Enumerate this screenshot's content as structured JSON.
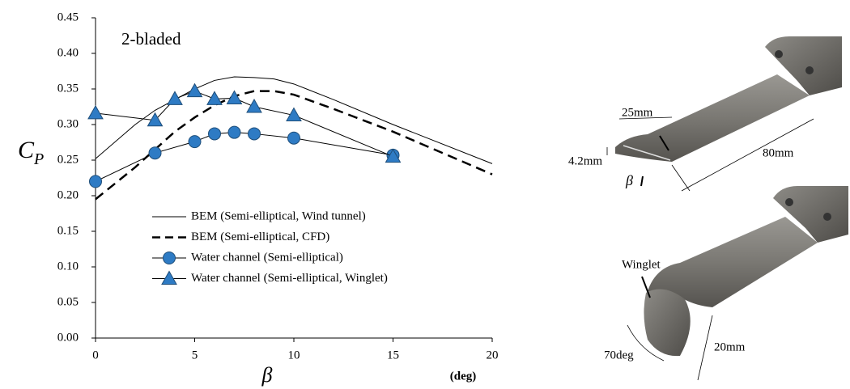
{
  "chart_data": {
    "type": "line",
    "annotation": "2-bladed",
    "y_label": {
      "text": "C",
      "subscript": "P"
    },
    "x_label": "β",
    "x_unit": "(deg)",
    "xlim": [
      0,
      20
    ],
    "xticks": [
      0,
      5,
      10,
      15,
      20
    ],
    "ylim": [
      0,
      0.45
    ],
    "yticks": [
      {
        "value": 0,
        "label": "0.00"
      },
      0.05,
      {
        "value": 0.1,
        "label": "0.10"
      },
      0.15,
      {
        "value": 0.2,
        "label": "0.20"
      },
      0.25,
      {
        "value": 0.3,
        "label": "0.30"
      },
      0.35,
      {
        "value": 0.4,
        "label": "0.40"
      },
      0.45
    ],
    "grid": false,
    "series": [
      {
        "name": "BEM (Semi-elliptical, Wind tunnel)",
        "color": "#000000",
        "dash": "solid",
        "marker": "none",
        "x": [
          0,
          2,
          3,
          4,
          5,
          6,
          7,
          8,
          9,
          10,
          12,
          15,
          20
        ],
        "values": [
          0.252,
          0.3,
          0.32,
          0.335,
          0.35,
          0.362,
          0.367,
          0.366,
          0.364,
          0.357,
          0.335,
          0.3,
          0.245
        ]
      },
      {
        "name": "BEM (Semi-elliptical, CFD)",
        "color": "#000000",
        "dash": "dashed",
        "marker": "none",
        "x": [
          0,
          2,
          3,
          4,
          5,
          6,
          7,
          8,
          9,
          10,
          12,
          15,
          20
        ],
        "values": [
          0.195,
          0.24,
          0.265,
          0.29,
          0.31,
          0.327,
          0.34,
          0.347,
          0.347,
          0.342,
          0.322,
          0.29,
          0.23
        ]
      },
      {
        "name": "Water channel (Semi-elliptical)",
        "color": "#2e7bc4",
        "dash": "solid",
        "marker": "circle",
        "x": [
          0,
          3,
          5,
          6,
          7,
          8,
          10,
          15
        ],
        "values": [
          0.22,
          0.26,
          0.276,
          0.287,
          0.289,
          0.287,
          0.281,
          0.257
        ]
      },
      {
        "name": "Water channel (Semi-elliptical, Winglet)",
        "color": "#2e7bc4",
        "dash": "solid",
        "marker": "triangle",
        "x": [
          0,
          3,
          4,
          5,
          6,
          7,
          8,
          10,
          15
        ],
        "values": [
          0.316,
          0.306,
          0.336,
          0.347,
          0.336,
          0.337,
          0.325,
          0.313,
          0.255
        ]
      }
    ]
  },
  "figure_annotations": {
    "width_top": "25mm",
    "thickness": "4.2mm",
    "length": "80mm",
    "pitch": "β",
    "winglet": "Winglet",
    "winglet_angle": "70deg",
    "winglet_depth": "20mm"
  }
}
